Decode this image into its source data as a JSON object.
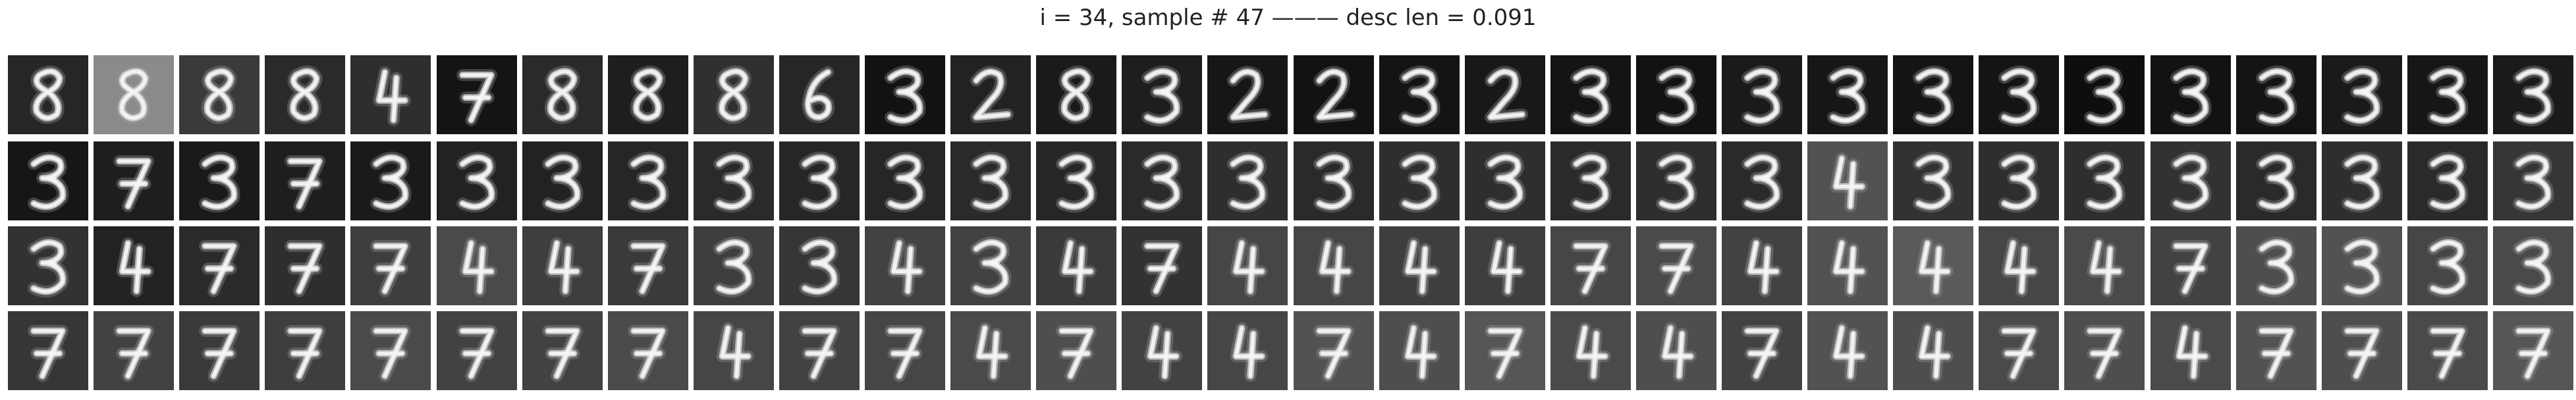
{
  "figure": {
    "title": "i = 34, sample # 47 ——— desc len = 0.091"
  },
  "grid": {
    "rows": 4,
    "columns": 30,
    "row_contents": [
      {
        "row": 1,
        "digit_shapes": [
          "8",
          "8",
          "8",
          "8",
          "4",
          "7",
          "8",
          "8",
          "8",
          "6",
          "3",
          "2",
          "8",
          "3",
          "2",
          "2",
          "3",
          "2",
          "3",
          "3",
          "3",
          "3",
          "3",
          "3",
          "3",
          "3",
          "3",
          "3",
          "3",
          "3"
        ],
        "backgrounds": [
          "#262626",
          "#8a8a8a",
          "#3a3a3a",
          "#2a2a2a",
          "#2e2e2e",
          "#141414",
          "#2a2a2a",
          "#1e1e1e",
          "#303030",
          "#262626",
          "#121212",
          "#222222",
          "#1a1a1a",
          "#1e1e1e",
          "#161616",
          "#121212",
          "#141414",
          "#181818",
          "#141414",
          "#121212",
          "#1a1a1a",
          "#161616",
          "#141414",
          "#141414",
          "#0e0e0e",
          "#121212",
          "#141414",
          "#1a1a1a",
          "#161616",
          "#1a1a1a"
        ]
      },
      {
        "row": 2,
        "digit_shapes": [
          "3",
          "7",
          "3",
          "7",
          "3",
          "3",
          "3",
          "3",
          "3",
          "3",
          "3",
          "3",
          "3",
          "3",
          "3",
          "3",
          "3",
          "3",
          "3",
          "3",
          "3",
          "4",
          "3",
          "3",
          "3",
          "3",
          "3",
          "3",
          "3",
          "3"
        ],
        "backgrounds": [
          "#161616",
          "#1e1e1e",
          "#1a1a1a",
          "#1e1e1e",
          "#1a1a1a",
          "#222222",
          "#222222",
          "#262626",
          "#2a2a2a",
          "#262626",
          "#262626",
          "#2a2a2a",
          "#262626",
          "#2a2a2a",
          "#2e2e2e",
          "#2a2a2a",
          "#2e2e2e",
          "#2e2e2e",
          "#2a2a2a",
          "#2e2e2e",
          "#2a2a2a",
          "#525252",
          "#323232",
          "#2e2e2e",
          "#2e2e2e",
          "#323232",
          "#2a2a2a",
          "#2e2e2e",
          "#2a2a2a",
          "#363636"
        ]
      },
      {
        "row": 3,
        "digit_shapes": [
          "3",
          "4",
          "7",
          "7",
          "7",
          "4",
          "4",
          "7",
          "3",
          "3",
          "4",
          "3",
          "4",
          "7",
          "4",
          "4",
          "4",
          "4",
          "7",
          "7",
          "4",
          "4",
          "4",
          "4",
          "4",
          "7",
          "3",
          "3",
          "3",
          "3"
        ],
        "backgrounds": [
          "#323232",
          "#222222",
          "#2a2a2a",
          "#2e2e2e",
          "#3e3e3e",
          "#4a4a4a",
          "#3e3e3e",
          "#3a3a3a",
          "#3e3e3e",
          "#363636",
          "#424242",
          "#424242",
          "#3a3a3a",
          "#323232",
          "#464646",
          "#464646",
          "#3e3e3e",
          "#3e3e3e",
          "#464646",
          "#4a4a4a",
          "#424242",
          "#525252",
          "#5a5a5a",
          "#464646",
          "#4a4a4a",
          "#424242",
          "#4e4e4e",
          "#525252",
          "#464646",
          "#4a4a4a"
        ]
      },
      {
        "row": 4,
        "digit_shapes": [
          "7",
          "7",
          "7",
          "7",
          "7",
          "7",
          "7",
          "7",
          "4",
          "7",
          "7",
          "4",
          "7",
          "4",
          "4",
          "7",
          "4",
          "7",
          "4",
          "4",
          "7",
          "4",
          "4",
          "7",
          "7",
          "4",
          "7",
          "7",
          "7",
          "7"
        ],
        "backgrounds": [
          "#363636",
          "#424242",
          "#3a3a3a",
          "#3e3e3e",
          "#4a4a4a",
          "#424242",
          "#424242",
          "#4a4a4a",
          "#464646",
          "#424242",
          "#464646",
          "#4a4a4a",
          "#4e4e4e",
          "#424242",
          "#464646",
          "#525252",
          "#4e4e4e",
          "#565656",
          "#4a4a4a",
          "#4e4e4e",
          "#424242",
          "#525252",
          "#4e4e4e",
          "#4a4a4a",
          "#4e4e4e",
          "#4a4a4a",
          "#525252",
          "#4e4e4e",
          "#4a4a4a",
          "#565656"
        ]
      }
    ]
  }
}
